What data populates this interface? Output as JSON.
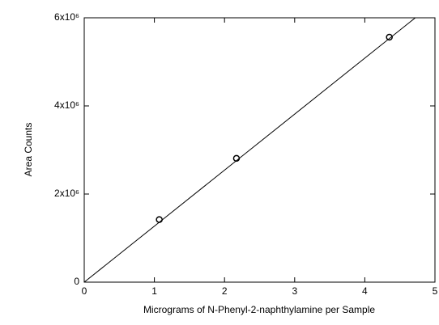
{
  "chart_data": {
    "type": "scatter",
    "xlabel": "Micrograms of N-Phenyl-2-naphthylamine per Sample",
    "ylabel": "Area Counts",
    "xlim": [
      0,
      5
    ],
    "ylim": [
      0,
      6000000
    ],
    "xticks": [
      0,
      1,
      2,
      3,
      4,
      5
    ],
    "yticks": [
      0,
      {
        "value": 2000000,
        "label": "2x10⁶"
      },
      {
        "value": 4000000,
        "label": "4x10⁶"
      },
      {
        "value": 6000000,
        "label": "6x10⁶"
      }
    ],
    "series": [
      {
        "type": "scatter",
        "color": "#000000",
        "x": [
          1.07,
          2.17,
          4.35
        ],
        "values": [
          1420000,
          2810000,
          5560000
        ]
      },
      {
        "type": "line",
        "color": "#000000",
        "x": [
          0,
          4.72
        ],
        "values": [
          0,
          6000000
        ]
      }
    ]
  }
}
